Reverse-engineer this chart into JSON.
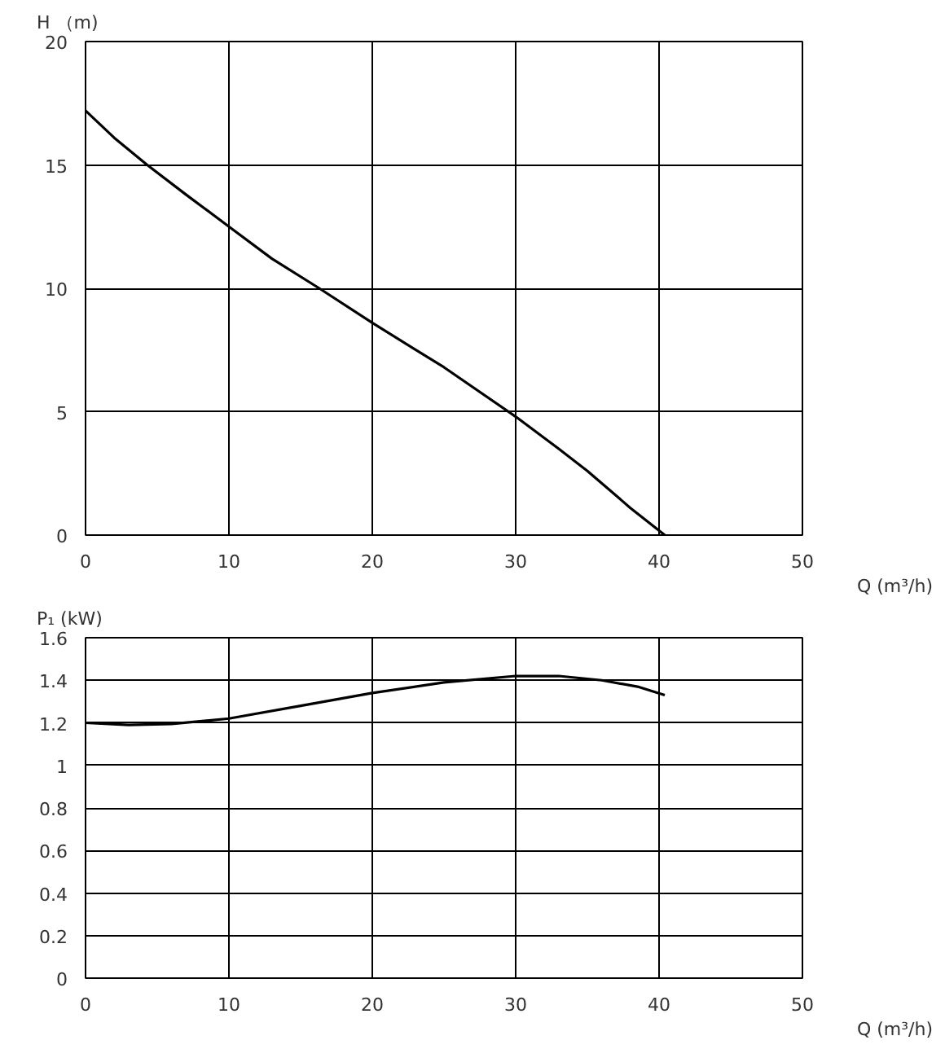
{
  "chart_data": [
    {
      "type": "line",
      "xlabel": "Q (m³/h)",
      "ylabel": "H （m)",
      "xlim": [
        0,
        50
      ],
      "ylim": [
        0,
        20
      ],
      "xticks": [
        0,
        10,
        20,
        30,
        40,
        50
      ],
      "yticks": [
        0,
        5,
        10,
        15,
        20
      ],
      "grid": true,
      "series": [
        {
          "color": "#000000",
          "x": [
            0,
            2,
            4.3,
            7,
            10,
            13,
            16.3,
            20,
            25,
            30,
            33,
            35,
            38,
            40.4
          ],
          "values": [
            17.2,
            16.1,
            15,
            13.8,
            12.5,
            11.2,
            10,
            8.6,
            6.8,
            4.8,
            3.5,
            2.6,
            1.1,
            0
          ]
        }
      ]
    },
    {
      "type": "line",
      "xlabel": "Q (m³/h)",
      "ylabel": "P₁ (kW)",
      "xlim": [
        0,
        50
      ],
      "ylim": [
        0,
        1.6
      ],
      "xticks": [
        0,
        10,
        20,
        30,
        40,
        50
      ],
      "yticks": [
        0,
        0.2,
        0.4,
        0.6,
        0.8,
        1,
        1.2,
        1.4,
        1.6
      ],
      "grid": true,
      "series": [
        {
          "color": "#000000",
          "x": [
            0,
            3,
            6,
            10,
            15,
            20,
            25,
            30,
            33,
            36,
            38.5,
            40.4
          ],
          "values": [
            1.2,
            1.19,
            1.195,
            1.22,
            1.28,
            1.34,
            1.39,
            1.42,
            1.42,
            1.4,
            1.37,
            1.33
          ]
        }
      ]
    }
  ]
}
